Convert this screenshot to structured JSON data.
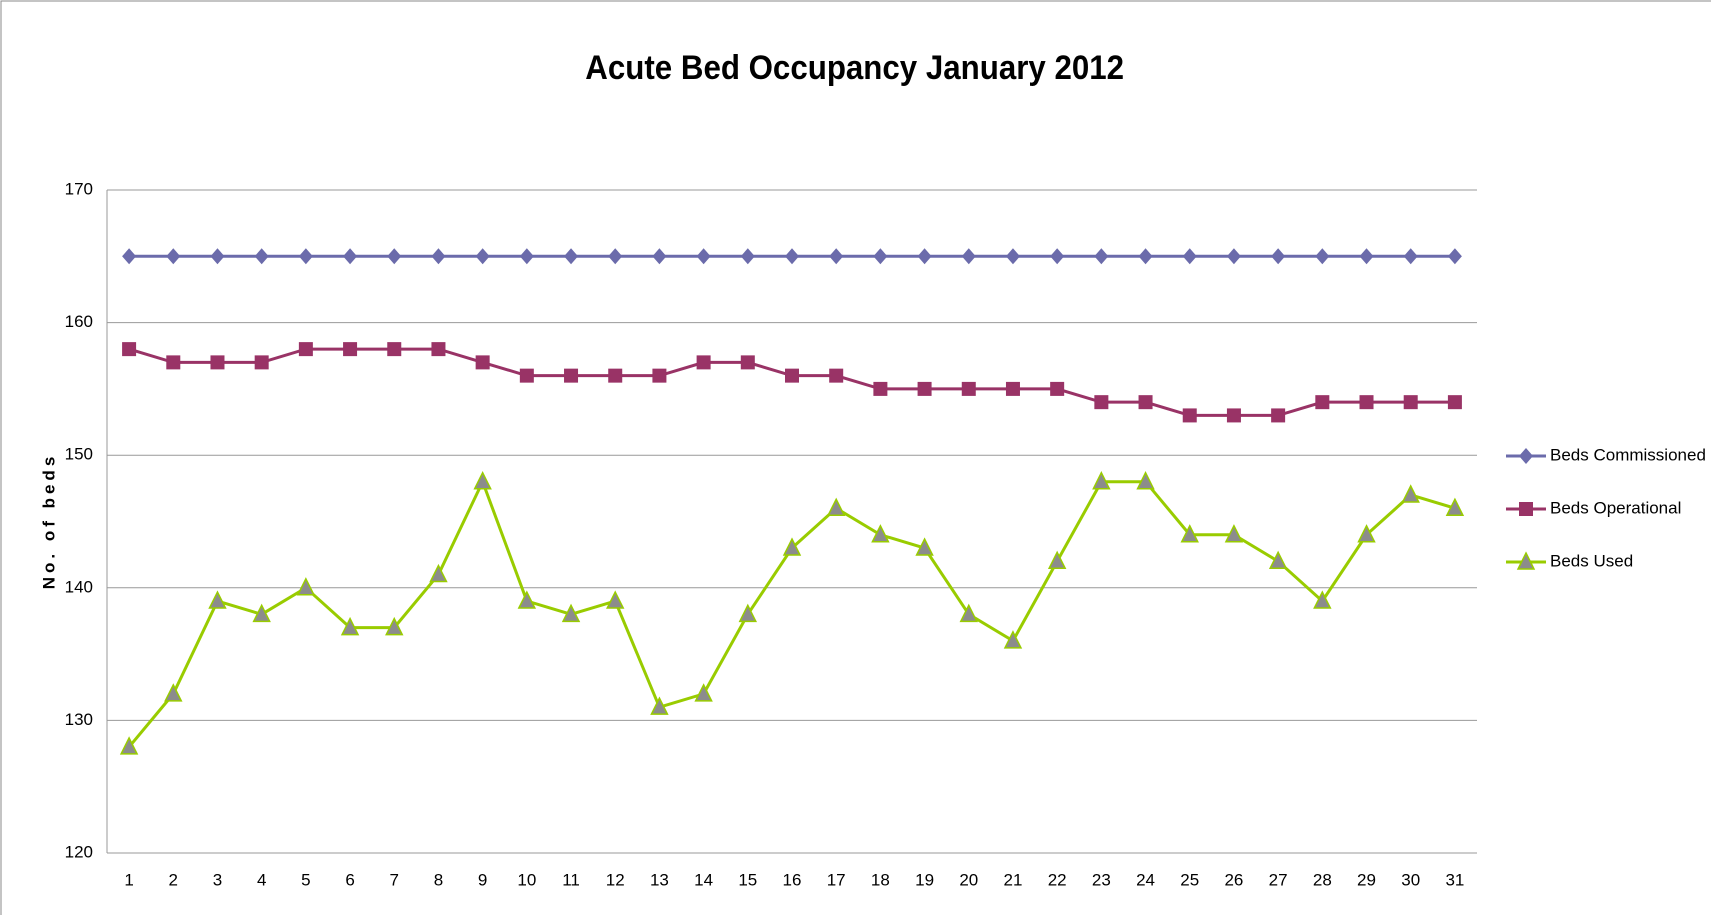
{
  "chart_data": {
    "type": "line",
    "title": "Acute Bed Occupancy January 2012",
    "y_label": "No. of beds",
    "categories": [
      "1",
      "2",
      "3",
      "4",
      "5",
      "6",
      "7",
      "8",
      "9",
      "10",
      "11",
      "12",
      "13",
      "14",
      "15",
      "16",
      "17",
      "18",
      "19",
      "20",
      "21",
      "22",
      "23",
      "24",
      "25",
      "26",
      "27",
      "28",
      "29",
      "30",
      "31"
    ],
    "series": [
      {
        "name": "Beds Commissioned",
        "color": "#6b6bab",
        "marker": "diamond",
        "values": [
          165,
          165,
          165,
          165,
          165,
          165,
          165,
          165,
          165,
          165,
          165,
          165,
          165,
          165,
          165,
          165,
          165,
          165,
          165,
          165,
          165,
          165,
          165,
          165,
          165,
          165,
          165,
          165,
          165,
          165,
          165
        ]
      },
      {
        "name": "Beds Operational",
        "color": "#993366",
        "marker": "square",
        "values": [
          158,
          157,
          157,
          157,
          158,
          158,
          158,
          158,
          157,
          156,
          156,
          156,
          156,
          157,
          157,
          156,
          156,
          155,
          155,
          155,
          155,
          155,
          154,
          154,
          153,
          153,
          153,
          154,
          154,
          154,
          154
        ]
      },
      {
        "name": "Beds Used",
        "color": "#99cc00",
        "marker": "triangle",
        "values": [
          128,
          132,
          139,
          138,
          140,
          137,
          137,
          141,
          148,
          139,
          138,
          139,
          131,
          132,
          138,
          143,
          146,
          144,
          143,
          138,
          136,
          142,
          148,
          148,
          144,
          144,
          142,
          139,
          144,
          147,
          146
        ]
      }
    ],
    "ylim": [
      120,
      170
    ],
    "yticks": [
      120,
      130,
      140,
      150,
      160,
      170
    ],
    "grid": true,
    "legend": "right"
  }
}
